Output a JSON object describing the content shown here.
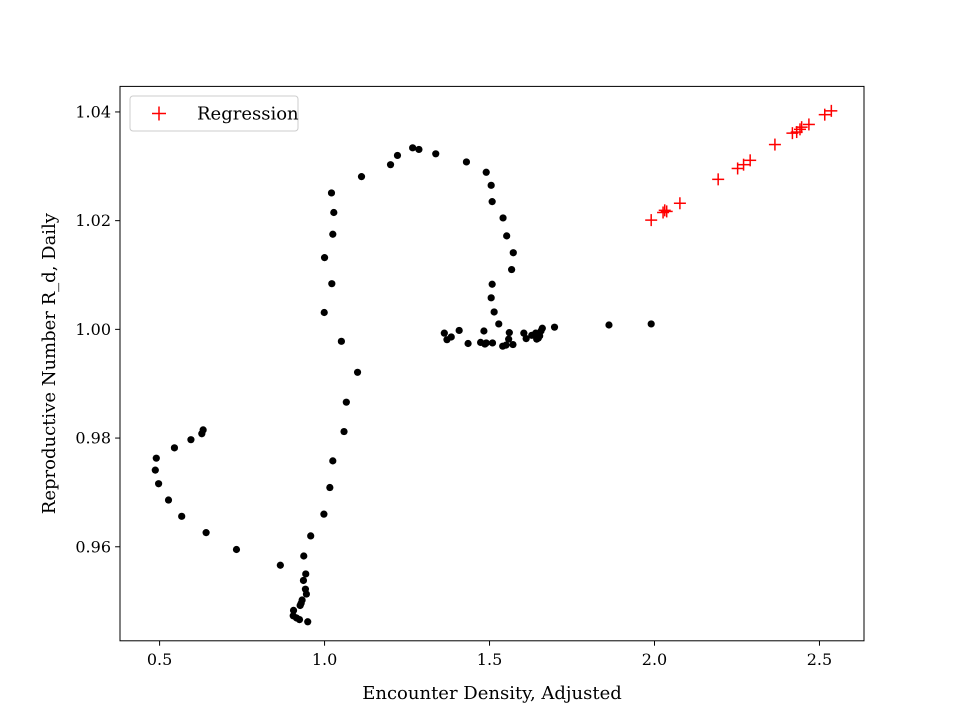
{
  "chart_data": {
    "type": "scatter",
    "xlabel": "Encounter Density, Adjusted",
    "ylabel": "Reproductive Number R_d, Daily",
    "xlim": [
      0.38,
      2.635
    ],
    "ylim": [
      0.9427,
      1.0447
    ],
    "xticks": [
      0.5,
      1.0,
      1.5,
      2.0,
      2.5
    ],
    "xtick_labels": [
      "0.5",
      "1.0",
      "1.5",
      "2.0",
      "2.5"
    ],
    "yticks": [
      0.96,
      0.98,
      1.0,
      1.02,
      1.04
    ],
    "ytick_labels": [
      "0.96",
      "0.98",
      "1.00",
      "1.02",
      "1.04"
    ],
    "grid": false,
    "legend": {
      "position": "top-left",
      "entries": [
        "Regression"
      ]
    },
    "series": [
      {
        "marker": "circle",
        "color": "#000000",
        "points": [
          [
            0.632,
            0.9815
          ],
          [
            0.628,
            0.9808
          ],
          [
            0.595,
            0.9797
          ],
          [
            0.545,
            0.9782
          ],
          [
            0.49,
            0.9763
          ],
          [
            0.487,
            0.9741
          ],
          [
            0.497,
            0.9716
          ],
          [
            0.527,
            0.9686
          ],
          [
            0.567,
            0.9656
          ],
          [
            0.641,
            0.9626
          ],
          [
            0.733,
            0.9595
          ],
          [
            0.866,
            0.9566
          ],
          [
            0.937,
            0.9583
          ],
          [
            0.943,
            0.955
          ],
          [
            0.936,
            0.9538
          ],
          [
            0.942,
            0.9522
          ],
          [
            0.945,
            0.9513
          ],
          [
            0.932,
            0.9502
          ],
          [
            0.929,
            0.9496
          ],
          [
            0.926,
            0.9492
          ],
          [
            0.906,
            0.9483
          ],
          [
            0.905,
            0.9473
          ],
          [
            0.915,
            0.9469
          ],
          [
            0.924,
            0.9466
          ],
          [
            0.949,
            0.9462
          ],
          [
            0.958,
            0.962
          ],
          [
            0.998,
            0.966
          ],
          [
            1.016,
            0.9709
          ],
          [
            1.025,
            0.9758
          ],
          [
            1.059,
            0.9812
          ],
          [
            1.066,
            0.9866
          ],
          [
            1.1,
            0.9921
          ],
          [
            1.051,
            0.9978
          ],
          [
            0.999,
            1.0031
          ],
          [
            1.022,
            1.0084
          ],
          [
            1.0,
            1.0132
          ],
          [
            1.025,
            1.0175
          ],
          [
            1.028,
            1.0215
          ],
          [
            1.021,
            1.0251
          ],
          [
            1.112,
            1.0281
          ],
          [
            1.2,
            1.0303
          ],
          [
            1.221,
            1.032
          ],
          [
            1.267,
            1.0334
          ],
          [
            1.286,
            1.0331
          ],
          [
            1.337,
            1.0323
          ],
          [
            1.43,
            1.0308
          ],
          [
            1.49,
            1.0289
          ],
          [
            1.505,
            1.0265
          ],
          [
            1.508,
            1.0235
          ],
          [
            1.541,
            1.0205
          ],
          [
            1.552,
            1.0172
          ],
          [
            1.572,
            1.0141
          ],
          [
            1.567,
            1.011
          ],
          [
            1.508,
            1.0083
          ],
          [
            1.505,
            1.0058
          ],
          [
            1.514,
            1.0032
          ],
          [
            1.528,
            1.001
          ],
          [
            1.483,
            0.9997
          ],
          [
            1.49,
            0.9975
          ],
          [
            1.363,
            0.9993
          ],
          [
            1.371,
            0.9981
          ],
          [
            1.384,
            0.9986
          ],
          [
            1.408,
            0.9998
          ],
          [
            1.435,
            0.9974
          ],
          [
            1.473,
            0.9976
          ],
          [
            1.486,
            0.9973
          ],
          [
            1.509,
            0.9975
          ],
          [
            1.54,
            0.9969
          ],
          [
            1.55,
            0.9971
          ],
          [
            1.571,
            0.9972
          ],
          [
            1.558,
            0.9982
          ],
          [
            1.56,
            0.9994
          ],
          [
            1.604,
            0.9993
          ],
          [
            1.611,
            0.9983
          ],
          [
            1.628,
            0.9989
          ],
          [
            1.64,
            0.9993
          ],
          [
            1.643,
            0.9982
          ],
          [
            1.648,
            0.9984
          ],
          [
            1.652,
            0.9988
          ],
          [
            1.656,
            0.9997
          ],
          [
            1.66,
            1.0002
          ],
          [
            1.697,
            1.0004
          ],
          [
            1.862,
            1.0008
          ],
          [
            1.99,
            1.001
          ]
        ]
      },
      {
        "name": "Regression",
        "marker": "plus",
        "color": "#ff0000",
        "points": [
          [
            1.99,
            1.0201
          ],
          [
            2.026,
            1.0215
          ],
          [
            2.031,
            1.0219
          ],
          [
            2.037,
            1.0217
          ],
          [
            2.077,
            1.0232
          ],
          [
            2.193,
            1.0276
          ],
          [
            2.252,
            1.0296
          ],
          [
            2.27,
            1.0303
          ],
          [
            2.29,
            1.0311
          ],
          [
            2.365,
            1.034
          ],
          [
            2.418,
            1.0361
          ],
          [
            2.431,
            1.0363
          ],
          [
            2.441,
            1.0368
          ],
          [
            2.446,
            1.0372
          ],
          [
            2.468,
            1.0377
          ],
          [
            2.516,
            1.0395
          ],
          [
            2.536,
            1.0402
          ]
        ]
      }
    ]
  }
}
